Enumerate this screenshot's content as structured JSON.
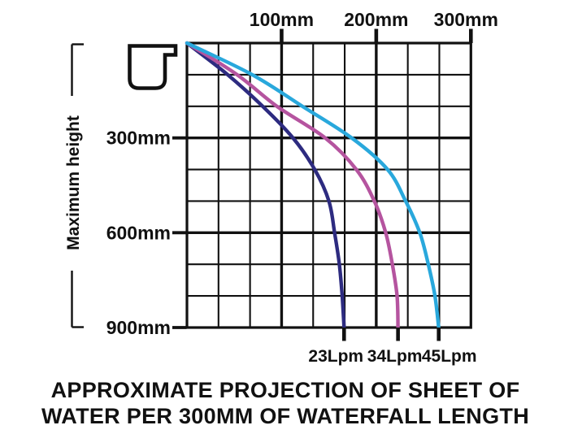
{
  "window": {
    "background": "#ffffff"
  },
  "title": {
    "line1": "APPROXIMATE PROJECTION OF SHEET OF",
    "line2": "WATER PER 300MM OF WATERFALL LENGTH"
  },
  "icons": {
    "spout": "waterfall-spout-profile"
  },
  "chart_data": {
    "type": "line",
    "title": "APPROXIMATE PROJECTION OF SHEET OF WATER PER 300MM OF WATERFALL LENGTH",
    "grid": {
      "cols": 9,
      "rows": 9,
      "major_every": 3,
      "line_color": "#111111",
      "background": "#ffffff"
    },
    "x_axis": {
      "position": "top",
      "unit": "mm",
      "range_mm": [
        0,
        300
      ],
      "ticks": [
        {
          "label": "100mm",
          "value": 100,
          "label_dx": 0
        },
        {
          "label": "200mm",
          "value": 200,
          "label_dx": 0
        },
        {
          "label": "300mm",
          "value": 300,
          "label_dx": -6
        }
      ]
    },
    "y_axis": {
      "position": "left",
      "label": "Maximum height",
      "unit": "mm",
      "range_mm": [
        0,
        900
      ],
      "direction": "down",
      "ticks": [
        {
          "label": "300mm",
          "value": 300
        },
        {
          "label": "600mm",
          "value": 600
        },
        {
          "label": "900mm",
          "value": 900
        }
      ]
    },
    "heights_mm": [
      0,
      100,
      200,
      300,
      400,
      500,
      600,
      700,
      800,
      900
    ],
    "series": [
      {
        "name": "23Lpm",
        "color": "#2d2b80",
        "projection_mm": [
          0,
          43,
          80,
          112,
          135,
          150,
          156,
          161,
          164,
          166
        ],
        "label_dx": -10
      },
      {
        "name": "34Lpm",
        "color": "#b5549f",
        "projection_mm": [
          0,
          53,
          95,
          146,
          179,
          198,
          210,
          217,
          222,
          223
        ],
        "label_dx": -4
      },
      {
        "name": "45Lpm",
        "color": "#29a8dc",
        "projection_mm": [
          0,
          69,
          122,
          174,
          212,
          231,
          246,
          255,
          262,
          266
        ],
        "label_dx": 13
      }
    ]
  }
}
